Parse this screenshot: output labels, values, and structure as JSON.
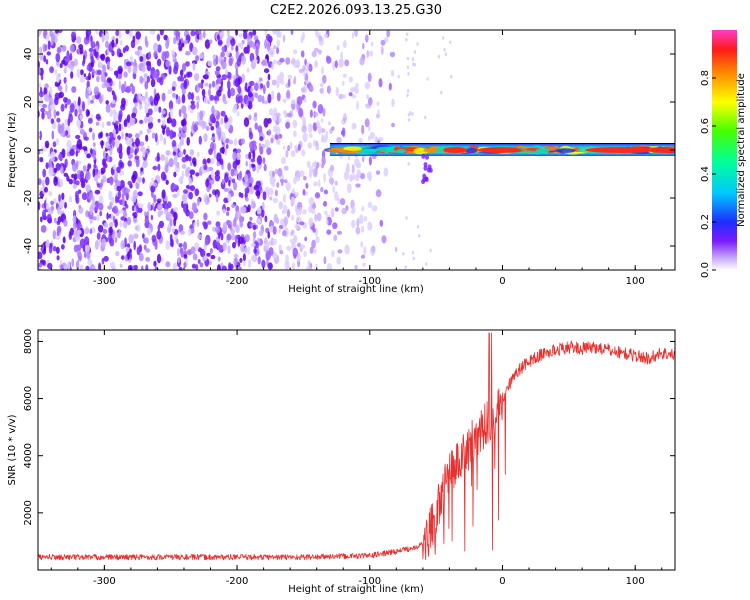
{
  "title": "C2E2.2026.093.13.25.G30",
  "chart_data": [
    {
      "type": "heatmap",
      "name": "spectrogram",
      "xlabel": "Height of straight line (km)",
      "ylabel": "Frequency (Hz)",
      "xlim": [
        -350,
        130
      ],
      "ylim": [
        -50,
        50
      ],
      "xticks": [
        -300,
        -200,
        -100,
        0,
        100
      ],
      "xtick_labels": [
        "-300",
        "-200",
        "-100",
        "0",
        "100"
      ],
      "yticks": [
        -40,
        -20,
        0,
        20,
        40
      ],
      "ytick_labels": [
        "-40",
        "-20",
        "0",
        "20",
        "40"
      ],
      "noise_region_km": [
        -350,
        -80
      ],
      "signal_start_km": -130,
      "signal_center_hz": 0,
      "colorbar": {
        "label": "Normalized spectral amplitude",
        "range": [
          0.0,
          1.0
        ],
        "ticks": [
          0.0,
          0.2,
          0.4,
          0.6,
          0.8
        ],
        "tick_labels": [
          "0.0",
          "0.2",
          "0.4",
          "0.6",
          "0.8"
        ],
        "colormap": "rainbow (violet to magenta)"
      }
    },
    {
      "type": "line",
      "name": "snr",
      "xlabel": "Height of straight line (km)",
      "ylabel": "SNR (10 * v/v)",
      "xlim": [
        -350,
        130
      ],
      "ylim": [
        0,
        8400
      ],
      "xticks": [
        -300,
        -200,
        -100,
        0,
        100
      ],
      "xtick_labels": [
        "-300",
        "-200",
        "-100",
        "0",
        "100"
      ],
      "yticks": [
        2000,
        4000,
        6000,
        8000
      ],
      "ytick_labels": [
        "2000",
        "4000",
        "6000",
        "8000"
      ],
      "color": "#e8302e",
      "series": [
        {
          "name": "SNR",
          "x": [
            -350,
            -300,
            -250,
            -200,
            -150,
            -100,
            -80,
            -70,
            -60,
            -55,
            -50,
            -45,
            -40,
            -35,
            -30,
            -25,
            -20,
            -15,
            -10,
            -5,
            0,
            5,
            10,
            20,
            30,
            40,
            50,
            60,
            70,
            80,
            90,
            100,
            110,
            120,
            130
          ],
          "y": [
            450,
            450,
            450,
            450,
            450,
            500,
            650,
            750,
            900,
            1300,
            2000,
            2800,
            3300,
            3700,
            4000,
            4300,
            4700,
            5000,
            5200,
            5600,
            6000,
            6500,
            6900,
            7300,
            7550,
            7700,
            7800,
            7750,
            7800,
            7700,
            7600,
            7500,
            7400,
            7600,
            7500
          ]
        }
      ]
    }
  ]
}
